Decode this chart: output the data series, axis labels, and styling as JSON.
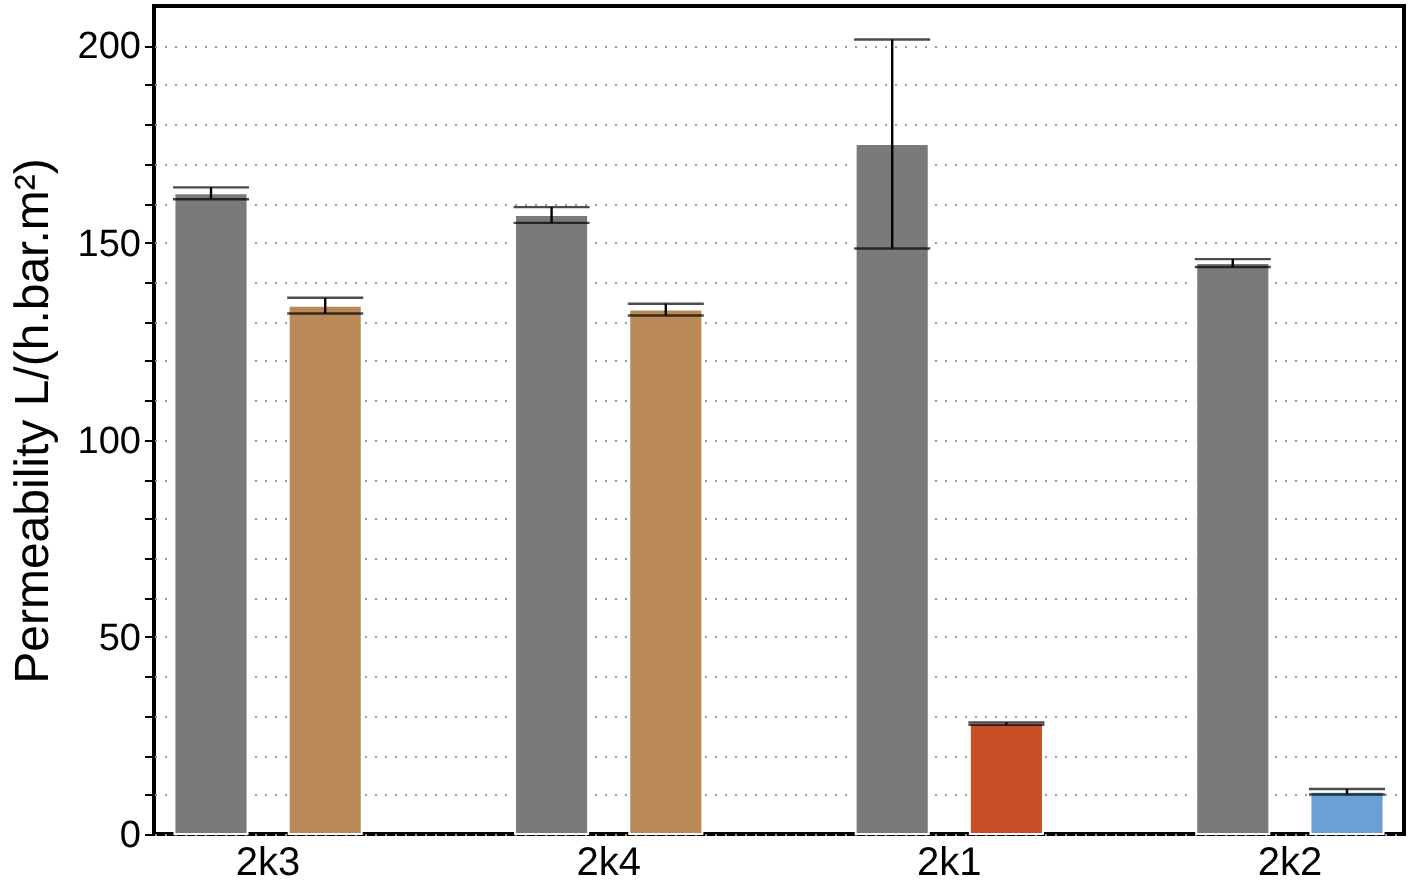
{
  "chart_data": {
    "type": "bar",
    "ylabel": "Permeability L/(h.bar.m²)",
    "categories": [
      "2k3",
      "2k4",
      "2k1",
      "2k2"
    ],
    "series": [
      {
        "color": "#7a7a7a",
        "values": [
          162.5,
          157,
          175,
          144.8
        ],
        "errors": [
          1.5,
          2,
          26.5,
          1
        ]
      },
      {
        "colors": [
          "#b98a58",
          "#b98a58",
          "#c84e25",
          "#6aa0d6"
        ],
        "values": [
          134,
          133,
          28,
          10.7
        ],
        "errors": [
          2,
          1.5,
          0.3,
          0.7
        ]
      }
    ],
    "ylim": [
      0,
      210
    ],
    "yticks": [
      0,
      {
        "value": 10,
        "label": null
      },
      {
        "value": 20,
        "label": null
      },
      {
        "value": 30,
        "label": null
      },
      {
        "value": 40,
        "label": null
      },
      50,
      {
        "value": 60,
        "label": null
      },
      {
        "value": 70,
        "label": null
      },
      {
        "value": 80,
        "label": null
      },
      {
        "value": 90,
        "label": null
      },
      100,
      {
        "value": 110,
        "label": null
      },
      {
        "value": 120,
        "label": null
      },
      {
        "value": 130,
        "label": null
      },
      {
        "value": 140,
        "label": null
      },
      150,
      {
        "value": 160,
        "label": null
      },
      {
        "value": 170,
        "label": null
      },
      {
        "value": 180,
        "label": null
      },
      {
        "value": 190,
        "label": null
      },
      200
    ],
    "grid": "y"
  }
}
